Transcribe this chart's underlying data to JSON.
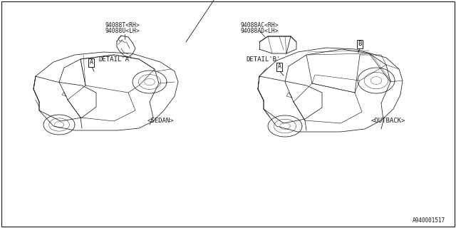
{
  "bg_color": "#ffffff",
  "line_color": "#1a1a1a",
  "part_labels_left": [
    "94088T<RH>",
    "94088U<LH>"
  ],
  "part_labels_right": [
    "94088AC<RH>",
    "94088AD<LH>"
  ],
  "detail_a_label": "DETAIL'A'",
  "detail_b_label": "DETAIL'B'",
  "sedan_label": "<SEDAN>",
  "outback_label": "<OUTBACK>",
  "footer_text": "A940001517",
  "callout_a": "A",
  "callout_b": "B",
  "font_size_parts": 5.8,
  "font_size_detail": 6.5,
  "font_size_label": 6.5,
  "font_size_footer": 5.5,
  "font_family": "monospace",
  "border_lw": 0.8,
  "car_lw": 0.55,
  "detail_lw": 0.6
}
